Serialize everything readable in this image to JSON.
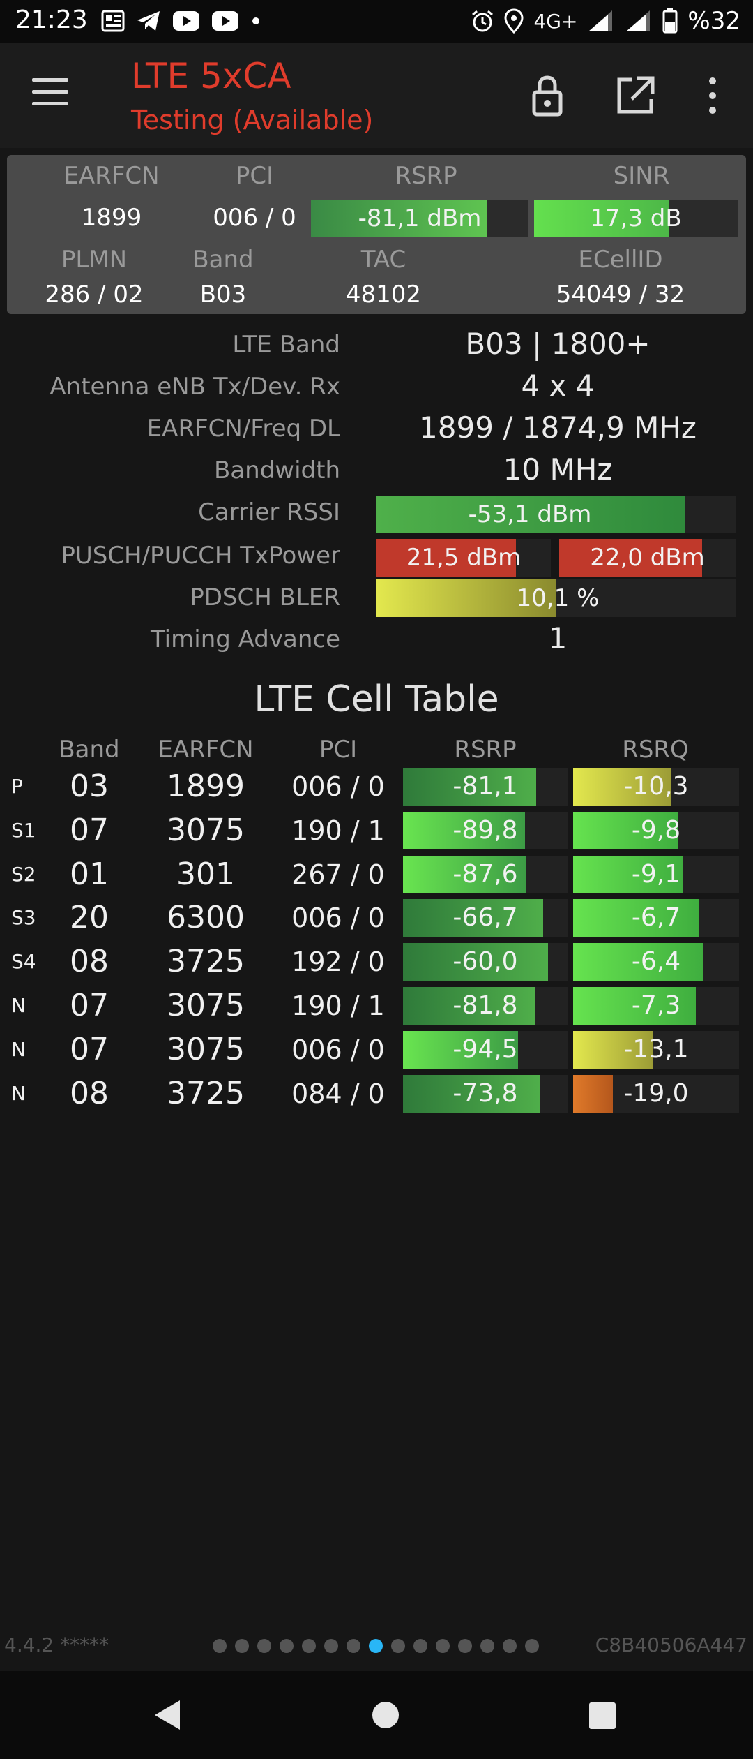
{
  "status_bar": {
    "time": "21:23",
    "network": "4G+",
    "battery": "%32",
    "icons": [
      "news-icon",
      "telegram-icon",
      "youtube-icon",
      "youtube-icon",
      "dot-icon",
      "alarm-icon",
      "location-icon",
      "signal-icon",
      "signal-icon",
      "battery-icon"
    ]
  },
  "app_bar": {
    "title": "LTE 5xCA",
    "subtitle": "Testing (Available)",
    "icons": [
      "menu-icon",
      "lock-icon",
      "open-external-icon",
      "more-vert-icon"
    ]
  },
  "header_panel": {
    "labels": {
      "earfcn": "EARFCN",
      "pci": "PCI",
      "rsrp": "RSRP",
      "sinr": "SINR",
      "plmn": "PLMN",
      "band": "Band",
      "tac": "TAC",
      "ecellid": "ECellID"
    },
    "earfcn": "1899",
    "pci": "006 / 0",
    "rsrp": "-81,1 dBm",
    "rsrp_fill": 0.81,
    "sinr": "17,3 dB",
    "sinr_fill": 0.66,
    "plmn": "286 / 02",
    "band": "B03",
    "tac": "48102",
    "ecellid": "54049 / 32"
  },
  "details": {
    "lte_band_label": "LTE Band",
    "lte_band": "B03 | 1800+",
    "antenna_label": "Antenna eNB Tx/Dev. Rx",
    "antenna": "4 x 4",
    "freq_label": "EARFCN/Freq DL",
    "freq": "1899 / 1874,9 MHz",
    "bandwidth_label": "Bandwidth",
    "bandwidth": "10 MHz",
    "rssi_label": "Carrier RSSI",
    "rssi": "-53,1 dBm",
    "rssi_fill": 0.86,
    "txpower_label": "PUSCH/PUCCH TxPower",
    "pusch": "21,5 dBm",
    "pusch_fill": 0.8,
    "pucch": "22,0 dBm",
    "pucch_fill": 0.81,
    "bler_label": "PDSCH BLER",
    "bler": "10,1 %",
    "bler_fill": 0.5,
    "ta_label": "Timing Advance",
    "ta": "1"
  },
  "cell_table": {
    "title": "LTE Cell Table",
    "headers": {
      "band": "Band",
      "earfcn": "EARFCN",
      "pci": "PCI",
      "rsrp": "RSRP",
      "rsrq": "RSRQ"
    },
    "rows": [
      {
        "type": "P",
        "band": "03",
        "earfcn": "1899",
        "pci": "006 / 0",
        "rsrp": "-81,1",
        "rsrp_fill": 0.81,
        "rsrq": "-10,3",
        "rsrq_fill": 0.59
      },
      {
        "type": "S1",
        "band": "07",
        "earfcn": "3075",
        "pci": "190 / 1",
        "rsrp": "-89,8",
        "rsrp_fill": 0.74,
        "rsrq": "-9,8",
        "rsrq_fill": 0.63
      },
      {
        "type": "S2",
        "band": "01",
        "earfcn": "301",
        "pci": "267 / 0",
        "rsrp": "-87,6",
        "rsrp_fill": 0.75,
        "rsrq": "-9,1",
        "rsrq_fill": 0.66
      },
      {
        "type": "S3",
        "band": "20",
        "earfcn": "6300",
        "pci": "006 / 0",
        "rsrp": "-66,7",
        "rsrp_fill": 0.85,
        "rsrq": "-6,7",
        "rsrq_fill": 0.76
      },
      {
        "type": "S4",
        "band": "08",
        "earfcn": "3725",
        "pci": "192 / 0",
        "rsrp": "-60,0",
        "rsrp_fill": 0.88,
        "rsrq": "-6,4",
        "rsrq_fill": 0.78
      },
      {
        "type": "N",
        "band": "07",
        "earfcn": "3075",
        "pci": "190 / 1",
        "rsrp": "-81,8",
        "rsrp_fill": 0.8,
        "rsrq": "-7,3",
        "rsrq_fill": 0.74
      },
      {
        "type": "N",
        "band": "07",
        "earfcn": "3075",
        "pci": "006 / 0",
        "rsrp": "-94,5",
        "rsrp_fill": 0.7,
        "rsrq": "-13,1",
        "rsrq_fill": 0.48
      },
      {
        "type": "N",
        "band": "08",
        "earfcn": "3725",
        "pci": "084 / 0",
        "rsrp": "-73,8",
        "rsrp_fill": 0.83,
        "rsrq": "-19,0",
        "rsrq_fill": 0.24
      }
    ]
  },
  "footer": {
    "version": "4.4.2 *****",
    "device_id": "C8B40506A447",
    "page_count": 15,
    "active_page": 8
  },
  "nav": {
    "icons": [
      "back-icon",
      "home-icon",
      "recents-icon"
    ]
  },
  "colors": {
    "accent_red": "#e03c2c",
    "good_green": "#5fd64a",
    "mid_green": "#3f9a48",
    "warn_yellow": "#d7dd4a",
    "bad_orange": "#d46a22",
    "tx_red": "#c0392b",
    "page_dot_active": "#29b6f6"
  }
}
